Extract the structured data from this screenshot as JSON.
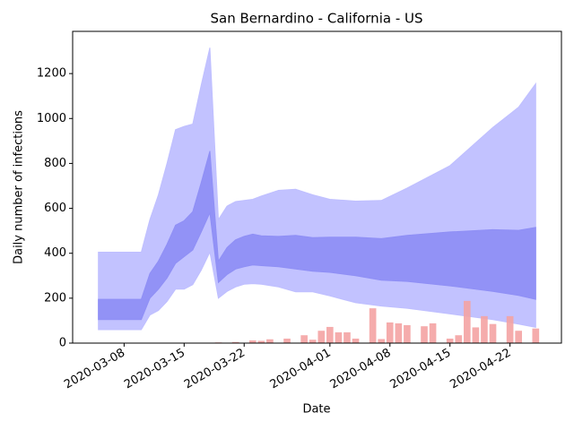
{
  "chart_data": {
    "type": "area",
    "title": "San Bernardino - California - US",
    "x_label": "Date",
    "y_label": "Daily number of infections",
    "x": [
      "2020-03-05",
      "2020-03-10",
      "2020-03-11",
      "2020-03-12",
      "2020-03-13",
      "2020-03-14",
      "2020-03-15",
      "2020-03-16",
      "2020-03-17",
      "2020-03-18",
      "2020-03-19",
      "2020-03-20",
      "2020-03-21",
      "2020-03-22",
      "2020-03-23",
      "2020-03-24",
      "2020-03-26",
      "2020-03-28",
      "2020-03-30",
      "2020-04-01",
      "2020-04-04",
      "2020-04-07",
      "2020-04-10",
      "2020-04-15",
      "2020-04-20",
      "2020-04-23",
      "2020-04-25"
    ],
    "bands": [
      {
        "color": "#bfbfff",
        "upper": [
          405,
          405,
          550,
          660,
          800,
          950,
          965,
          975,
          1150,
          1315,
          550,
          610,
          630,
          635,
          640,
          655,
          680,
          685,
          660,
          640,
          632,
          635,
          690,
          790,
          960,
          1050,
          1155
        ],
        "lower": [
          60,
          60,
          125,
          145,
          185,
          240,
          240,
          260,
          325,
          405,
          200,
          230,
          250,
          262,
          265,
          262,
          250,
          228,
          228,
          210,
          180,
          165,
          155,
          130,
          105,
          85,
          70
        ]
      },
      {
        "color": "#8f8ff5",
        "upper": [
          195,
          195,
          310,
          365,
          440,
          525,
          545,
          585,
          715,
          855,
          365,
          425,
          460,
          475,
          485,
          478,
          475,
          480,
          470,
          472,
          472,
          465,
          480,
          495,
          505,
          502,
          515
        ],
        "lower": [
          105,
          105,
          200,
          240,
          290,
          355,
          385,
          415,
          495,
          580,
          270,
          305,
          330,
          340,
          348,
          345,
          340,
          330,
          320,
          315,
          300,
          280,
          275,
          255,
          230,
          212,
          195
        ]
      }
    ],
    "bars": {
      "color": "#f4a3a3",
      "x": [
        "2020-03-19",
        "2020-03-21",
        "2020-03-23",
        "2020-03-24",
        "2020-03-25",
        "2020-03-27",
        "2020-03-29",
        "2020-03-30",
        "2020-03-31",
        "2020-04-01",
        "2020-04-02",
        "2020-04-03",
        "2020-04-04",
        "2020-04-06",
        "2020-04-07",
        "2020-04-08",
        "2020-04-09",
        "2020-04-10",
        "2020-04-12",
        "2020-04-13",
        "2020-04-15",
        "2020-04-16",
        "2020-04-17",
        "2020-04-18",
        "2020-04-19",
        "2020-04-20",
        "2020-04-22",
        "2020-04-23",
        "2020-04-25"
      ],
      "values": [
        3,
        5,
        12,
        10,
        17,
        20,
        35,
        15,
        55,
        72,
        48,
        48,
        20,
        155,
        18,
        92,
        88,
        80,
        75,
        88,
        20,
        35,
        188,
        70,
        120,
        85,
        120,
        55,
        65
      ]
    },
    "xlim": [
      "2020-03-02",
      "2020-04-28"
    ],
    "xticks": [
      "2020-03-08",
      "2020-03-15",
      "2020-03-22",
      "2020-04-01",
      "2020-04-08",
      "2020-04-15",
      "2020-04-22"
    ],
    "ylim": [
      0,
      1388
    ],
    "yticks": [
      0,
      200,
      400,
      600,
      800,
      1000,
      1200
    ]
  }
}
